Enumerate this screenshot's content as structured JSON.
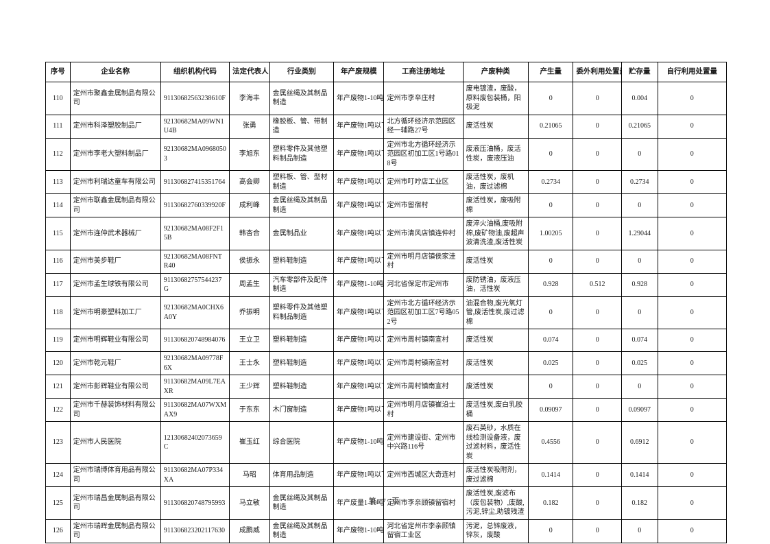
{
  "page": {
    "footer_label": "第 7 页"
  },
  "table": {
    "headers": [
      "序号",
      "企业名称",
      "组织机构代码",
      "法定代表人",
      "行业类别",
      "年产废规模",
      "工商注册地址",
      "产废种类",
      "产生量",
      "委外利用处置量",
      "贮存量",
      "自行利用处置量"
    ],
    "rows": [
      [
        "110",
        "定州市聚鑫金属制品有限公司",
        "91130682563238610F",
        "李海丰",
        "金属丝绳及其制品制造",
        "年产废物1-10吨",
        "定州市李辛庄村",
        "废电镀渣，废酸，原料废包装桶，阳极泥",
        "0",
        "0",
        "0.004",
        "0"
      ],
      [
        "111",
        "定州市科泽塑胶制品厂",
        "92130682MA09WN1U4B",
        "张勇",
        "橡胶板、管、带制造",
        "年产废物1吨以下",
        "北方循环经济示范园区经一辅路27号",
        "废活性炭",
        "0.21065",
        "0",
        "0.21065",
        "0"
      ],
      [
        "112",
        "定州市李老大塑料制品厂",
        "92130682MA09680503",
        "李旭东",
        "塑料零件及其他塑料制品制造",
        "年产废物1吨以下",
        "定州市北方循环经济示范园区初加工区1号路018号",
        "废液压油桶，废活性炭，废液压油",
        "0",
        "0",
        "0",
        "0"
      ],
      [
        "113",
        "定州市利瑞达童车有限公司",
        "911306827415351764",
        "高会卿",
        "塑料板、管、型材制造",
        "年产废物1吨以下",
        "定州市叮咛店工业区",
        "废活性炭，废机油，废过滤棉",
        "0.2734",
        "0",
        "0.2734",
        "0"
      ],
      [
        "114",
        "定州市联鑫金属制品有限公司",
        "91130682760339920F",
        "成利峰",
        "金属丝绳及其制品制造",
        "年产废物1吨以下",
        "定州市留宿村",
        "废活性炭，废吸附棉",
        "0",
        "0",
        "0",
        "0"
      ],
      [
        "115",
        "定州市连仲武术器械厂",
        "92130682MA08F2F15B",
        "韩杏合",
        "金属制品业",
        "年产废物1吨以下",
        "定州市清风店镇连仲村",
        "废淬火油桶,废吸附棉,废矿物油,废超声波清洗渣,废活性炭",
        "1.00205",
        "0",
        "1.29044",
        "0"
      ],
      [
        "116",
        "定州市美步鞋厂",
        "92130682MA08FNTR40",
        "侯振永",
        "塑料鞋制造",
        "年产废物1吨以下",
        "定州市明月店镇侯家洼村",
        "废活性炭",
        "0",
        "0",
        "0",
        "0"
      ],
      [
        "117",
        "定州市孟生球铁有限公司",
        "91130682757544237G",
        "周孟生",
        "汽车零部件及配件制造",
        "年产废物1-10吨",
        "河北省保定市定州市",
        "废防锈油，废液压油，活性炭",
        "0.928",
        "0.512",
        "0.928",
        "0"
      ],
      [
        "118",
        "定州市明豪塑料加工厂",
        "92130682MA0CHX6A0Y",
        "乔振明",
        "塑料零件及其他塑料制品制造",
        "年产废物1吨以下",
        "定州市北方循环经济示范园区初加工区7号路052号",
        "油混合物,废光氧灯管,废活性炭,废过滤棉",
        "0",
        "0",
        "0",
        "0"
      ],
      [
        "119",
        "定州市明辉鞋业有限公司",
        "911306820748984076",
        "王立卫",
        "塑料鞋制造",
        "年产废物1吨以下",
        "定州市周村镇南宣村",
        "废活性炭",
        "0.074",
        "0",
        "0.074",
        "0"
      ],
      [
        "120",
        "定州市乾元鞋厂",
        "92130682MA09778F6X",
        "王士永",
        "塑料鞋制造",
        "年产废物1吨以下",
        "定州市周村镇南宣村",
        "废活性炭",
        "0.025",
        "0",
        "0.025",
        "0"
      ],
      [
        "121",
        "定州市彭辉鞋业有限公司",
        "91130682MA09L7EAXR",
        "王少辉",
        "塑料鞋制造",
        "年产废物1吨以下",
        "定州市周村镇南宣村",
        "废活性炭",
        "0",
        "0",
        "0",
        "0"
      ],
      [
        "122",
        "定州市千赫装饰材料有限公司",
        "91130682MA07WXMAX9",
        "于东东",
        "木门窗制造",
        "年产废物1吨以下",
        "定州市明月店镇崔沿士村",
        "废活性炭,废白乳胶桶",
        "0.09097",
        "0",
        "0.09097",
        "0"
      ],
      [
        "123",
        "定州市人民医院",
        "12130682402073659C",
        "崔玉红",
        "综合医院",
        "年产废物1-10吨",
        "定州市建设街、定州市中兴路116号",
        "废石英砂，水质在线检测设备液，废过滤材料，废活性炭",
        "0.4556",
        "0",
        "0.6912",
        "0"
      ],
      [
        "124",
        "定州市瑞博体育用品有限公司",
        "91130682MA07P334XA",
        "马昭",
        "体育用品制造",
        "年产废物1吨以下",
        "定州市西城区大奇连村",
        "废活性炭吸附剂，废过滤棉",
        "0.1414",
        "0",
        "0.1414",
        "0"
      ],
      [
        "125",
        "定州市瑞昌金属制品有限公司",
        "911306820748795993",
        "马立敏",
        "金属丝绳及其制品制造",
        "年产废量1-10吨",
        "定州市李亲顾镇留宿村",
        "废活性炭,废滤布（废包装物）,废酸,污泥,锌尘,助镀残渣",
        "0.182",
        "0",
        "0.182",
        "0"
      ],
      [
        "126",
        "定州市瑞晖金属制品有限公司",
        "911306823202117630",
        "成鹏威",
        "金属丝绳及其制品制造",
        "年产废物1-10吨",
        "河北省定州市李亲顾镇留宿工业区",
        "污泥，总锌废液，锌灰，废酸",
        "0",
        "0",
        "0",
        "0"
      ]
    ]
  }
}
